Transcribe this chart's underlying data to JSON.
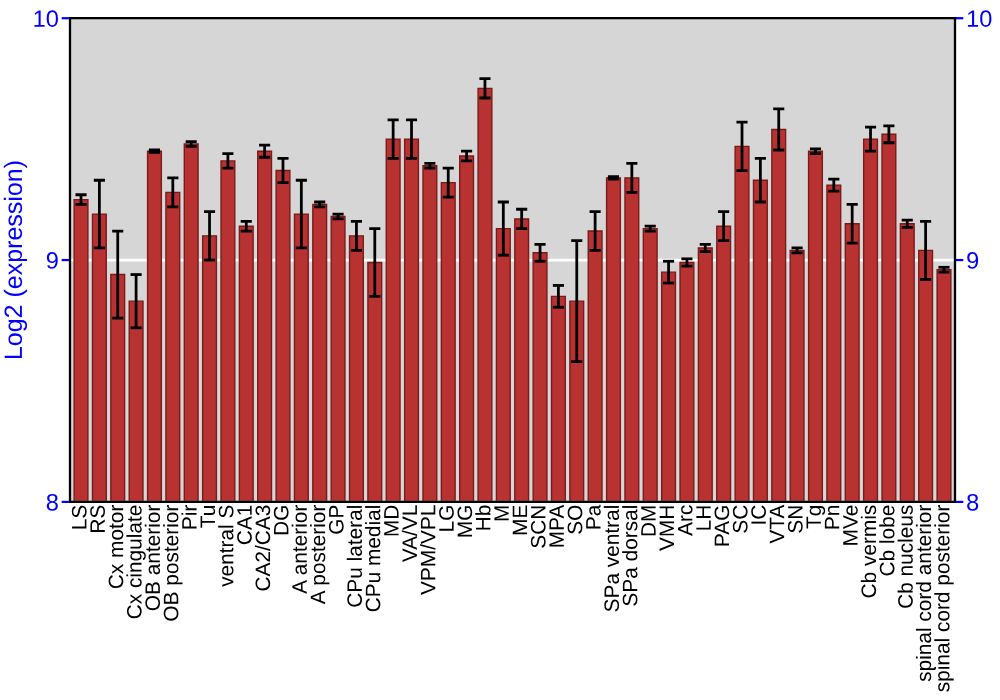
{
  "chart_data": {
    "type": "bar",
    "ylabel": "Log2 (expression)",
    "categories": [
      "LS",
      "RS",
      "Cx motor",
      "Cx cingulate",
      "OB anterior",
      "OB posterior",
      "Pir",
      "Tu",
      "ventral S",
      "CA1",
      "CA2/CA3",
      "DG",
      "A anterior",
      "A posterior",
      "GP",
      "CPu lateral",
      "CPu medial",
      "MD",
      "VA/VL",
      "VPM/VPL",
      "LG",
      "MG",
      "Hb",
      "M",
      "ME",
      "SCN",
      "MPA",
      "SO",
      "Pa",
      "SPa ventral",
      "SPa dorsal",
      "DM",
      "VMH",
      "Arc",
      "LH",
      "PAG",
      "SC",
      "IC",
      "VTA",
      "SN",
      "Tg",
      "Pn",
      "MVe",
      "Cb vermis",
      "Cb lobe",
      "Cb nucleus",
      "spinal cord anterior",
      "spinal cord posterior"
    ],
    "values": [
      9.25,
      9.19,
      8.94,
      8.83,
      9.45,
      9.28,
      9.48,
      9.1,
      9.41,
      9.14,
      9.45,
      9.37,
      9.19,
      9.23,
      9.18,
      9.1,
      8.99,
      9.5,
      9.5,
      9.39,
      9.32,
      9.43,
      9.71,
      9.13,
      9.17,
      9.03,
      8.85,
      8.83,
      9.12,
      9.34,
      9.34,
      9.13,
      8.95,
      8.99,
      9.05,
      9.14,
      9.47,
      9.33,
      9.54,
      9.04,
      9.45,
      9.31,
      9.15,
      9.5,
      9.52,
      9.15,
      9.04,
      8.96
    ],
    "errors": [
      0.02,
      0.14,
      0.18,
      0.11,
      0.005,
      0.06,
      0.01,
      0.1,
      0.03,
      0.02,
      0.025,
      0.05,
      0.14,
      0.01,
      0.01,
      0.06,
      0.14,
      0.08,
      0.08,
      0.01,
      0.06,
      0.02,
      0.04,
      0.11,
      0.04,
      0.035,
      0.045,
      0.25,
      0.08,
      0.005,
      0.06,
      0.01,
      0.045,
      0.015,
      0.015,
      0.06,
      0.1,
      0.09,
      0.085,
      0.01,
      0.01,
      0.025,
      0.08,
      0.05,
      0.035,
      0.015,
      0.12,
      0.01
    ],
    "color": "#b83232",
    "ylim": [
      8,
      10
    ],
    "yticks": [
      8,
      9,
      10
    ],
    "y2lim": [
      8,
      10
    ],
    "y2ticks": [
      8,
      9,
      10
    ],
    "grid": "y"
  }
}
